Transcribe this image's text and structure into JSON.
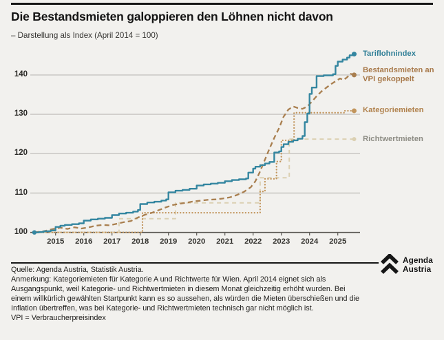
{
  "header": {
    "title": "Die Bestandsmieten galoppieren den Löhnen nicht davon",
    "subtitle": "– Darstellung als Index (April 2014 = 100)"
  },
  "chart_data": {
    "type": "line",
    "title": "Die Bestandsmieten galoppieren den Löhnen nicht davon",
    "subtitle": "Darstellung als Index (April 2014 = 100)",
    "x_axis": {
      "ticks": [
        2015,
        2016,
        2017,
        2018,
        2019,
        2020,
        2021,
        2022,
        2023,
        2024,
        2025
      ],
      "range": [
        2014.1,
        2025.9
      ]
    },
    "y_axis": {
      "ticks": [
        100,
        110,
        120,
        130,
        140
      ],
      "range": [
        100,
        146
      ],
      "grid": true
    },
    "legend_position": "right",
    "series": [
      {
        "name": "richtwertmieten",
        "label_lines": [
          "Richtwertmieten"
        ],
        "label_color": "#8e8d85",
        "color": "#dbd0b2",
        "style": "dashed-sm",
        "interp": "step",
        "width": 2.0,
        "points": [
          [
            2014.25,
            100
          ],
          [
            2017.25,
            103.5
          ],
          [
            2019.25,
            107.5
          ],
          [
            2022.25,
            113.9
          ],
          [
            2023.28,
            123.7
          ],
          [
            2025.58,
            123.7
          ]
        ]
      },
      {
        "name": "kategoriemieten",
        "label_lines": [
          "Kategoriemieten"
        ],
        "label_color": "#b28450",
        "color": "#c2955c",
        "style": "dotted",
        "interp": "step",
        "width": 2.3,
        "points": [
          [
            2014.25,
            100
          ],
          [
            2018.08,
            105.0
          ],
          [
            2022.25,
            110.4
          ],
          [
            2022.42,
            113.6
          ],
          [
            2022.83,
            118.0
          ],
          [
            2023.0,
            123.4
          ],
          [
            2023.45,
            130.4
          ],
          [
            2025.25,
            130.9
          ],
          [
            2025.58,
            130.9
          ]
        ]
      },
      {
        "name": "bestandsmieten-vpi",
        "label_lines": [
          "Bestandsmieten an",
          "VPI gekoppelt"
        ],
        "label_color": "#a8794a",
        "color": "#a97f4f",
        "style": "dashed",
        "interp": "linear",
        "width": 2.3,
        "points": [
          [
            2014.25,
            100
          ],
          [
            2014.58,
            100.3
          ],
          [
            2014.92,
            100.9
          ],
          [
            2015.17,
            101.2
          ],
          [
            2015.42,
            100.9
          ],
          [
            2015.67,
            101.3
          ],
          [
            2015.92,
            101.0
          ],
          [
            2016.17,
            101.3
          ],
          [
            2016.42,
            101.7
          ],
          [
            2016.67,
            101.9
          ],
          [
            2016.92,
            101.8
          ],
          [
            2017.17,
            102.2
          ],
          [
            2017.42,
            102.6
          ],
          [
            2017.67,
            102.9
          ],
          [
            2017.92,
            103.8
          ],
          [
            2018.17,
            104.5
          ],
          [
            2018.42,
            105.0
          ],
          [
            2018.67,
            105.7
          ],
          [
            2018.92,
            106.4
          ],
          [
            2019.17,
            107.0
          ],
          [
            2019.42,
            107.3
          ],
          [
            2019.67,
            107.6
          ],
          [
            2019.92,
            107.9
          ],
          [
            2020.17,
            108.1
          ],
          [
            2020.42,
            108.3
          ],
          [
            2020.67,
            108.4
          ],
          [
            2020.92,
            108.6
          ],
          [
            2021.17,
            108.9
          ],
          [
            2021.42,
            109.5
          ],
          [
            2021.67,
            110.3
          ],
          [
            2021.92,
            111.5
          ],
          [
            2022.08,
            113.0
          ],
          [
            2022.25,
            115.5
          ],
          [
            2022.42,
            118.5
          ],
          [
            2022.58,
            121.3
          ],
          [
            2022.75,
            124.0
          ],
          [
            2022.92,
            126.5
          ],
          [
            2023.08,
            129.4
          ],
          [
            2023.25,
            131.2
          ],
          [
            2023.42,
            132.0
          ],
          [
            2023.58,
            131.6
          ],
          [
            2023.75,
            131.4
          ],
          [
            2023.92,
            132.0
          ],
          [
            2024.08,
            133.2
          ],
          [
            2024.25,
            134.6
          ],
          [
            2024.42,
            135.8
          ],
          [
            2024.58,
            136.7
          ],
          [
            2024.75,
            137.6
          ],
          [
            2024.92,
            138.4
          ],
          [
            2025.08,
            139.1
          ],
          [
            2025.2,
            138.7
          ],
          [
            2025.33,
            139.4
          ],
          [
            2025.45,
            140.3
          ],
          [
            2025.58,
            140.0
          ]
        ]
      },
      {
        "name": "tariflohnindex",
        "label_lines": [
          "Tariflohnindex"
        ],
        "label_color": "#2e7e96",
        "color": "#3486a0",
        "style": "solid",
        "interp": "step",
        "width": 2.4,
        "start_dot": true,
        "points": [
          [
            2014.25,
            100
          ],
          [
            2014.42,
            100.1
          ],
          [
            2014.58,
            100.3
          ],
          [
            2014.83,
            100.5
          ],
          [
            2015.0,
            101.4
          ],
          [
            2015.17,
            101.7
          ],
          [
            2015.33,
            101.9
          ],
          [
            2015.58,
            102.1
          ],
          [
            2015.83,
            102.3
          ],
          [
            2016.0,
            103.0
          ],
          [
            2016.25,
            103.3
          ],
          [
            2016.5,
            103.5
          ],
          [
            2016.75,
            103.7
          ],
          [
            2017.0,
            104.4
          ],
          [
            2017.25,
            104.8
          ],
          [
            2017.5,
            105.0
          ],
          [
            2017.75,
            105.3
          ],
          [
            2017.92,
            105.7
          ],
          [
            2018.0,
            107.2
          ],
          [
            2018.25,
            107.6
          ],
          [
            2018.5,
            107.8
          ],
          [
            2018.75,
            108.1
          ],
          [
            2018.92,
            108.4
          ],
          [
            2019.0,
            110.2
          ],
          [
            2019.25,
            110.6
          ],
          [
            2019.5,
            110.8
          ],
          [
            2019.75,
            111.1
          ],
          [
            2020.0,
            111.9
          ],
          [
            2020.25,
            112.2
          ],
          [
            2020.5,
            112.4
          ],
          [
            2020.75,
            112.6
          ],
          [
            2021.0,
            113.0
          ],
          [
            2021.25,
            113.3
          ],
          [
            2021.5,
            113.5
          ],
          [
            2021.75,
            113.7
          ],
          [
            2021.83,
            115.2
          ],
          [
            2022.0,
            116.2
          ],
          [
            2022.08,
            116.7
          ],
          [
            2022.25,
            117.1
          ],
          [
            2022.42,
            117.5
          ],
          [
            2022.58,
            117.9
          ],
          [
            2022.75,
            120.3
          ],
          [
            2022.92,
            120.6
          ],
          [
            2023.0,
            121.7
          ],
          [
            2023.08,
            122.4
          ],
          [
            2023.25,
            123.0
          ],
          [
            2023.42,
            123.4
          ],
          [
            2023.58,
            123.8
          ],
          [
            2023.75,
            124.5
          ],
          [
            2023.83,
            128.0
          ],
          [
            2023.92,
            130.2
          ],
          [
            2024.0,
            135.2
          ],
          [
            2024.08,
            136.8
          ],
          [
            2024.25,
            139.7
          ],
          [
            2024.5,
            139.9
          ],
          [
            2024.83,
            140.2
          ],
          [
            2024.92,
            142.3
          ],
          [
            2025.0,
            143.4
          ],
          [
            2025.17,
            143.9
          ],
          [
            2025.33,
            144.4
          ],
          [
            2025.42,
            145.0
          ],
          [
            2025.58,
            145.3
          ]
        ]
      }
    ]
  },
  "footer": {
    "source_lines": [
      "Quelle: Agenda Austria, Statistik Austria.",
      "Anmerkung: Kategoriemieten für Kategorie A und Richtwerte für Wien. April 2014 eignet sich als",
      "Ausgangspunkt, weil Kategorie- und Richtwertmieten in diesem Monat gleichzeitig erhöht wurden. Bei",
      "einem willkürlich gewählten Startpunkt kann es so aussehen, als würden die Mieten überschießen und die",
      "Inflation übertreffen, was bei Kategorie- und Richtwertmieten technisch gar nicht möglich ist.",
      "VPI = Verbraucherpreisindex"
    ],
    "logo": {
      "line1": "Agenda",
      "line2": "Austria"
    }
  },
  "colors": {
    "background": "#f2f1ee",
    "grid": "#c6c4c0",
    "axis": "#56544f",
    "text": "#1d1c1a"
  }
}
